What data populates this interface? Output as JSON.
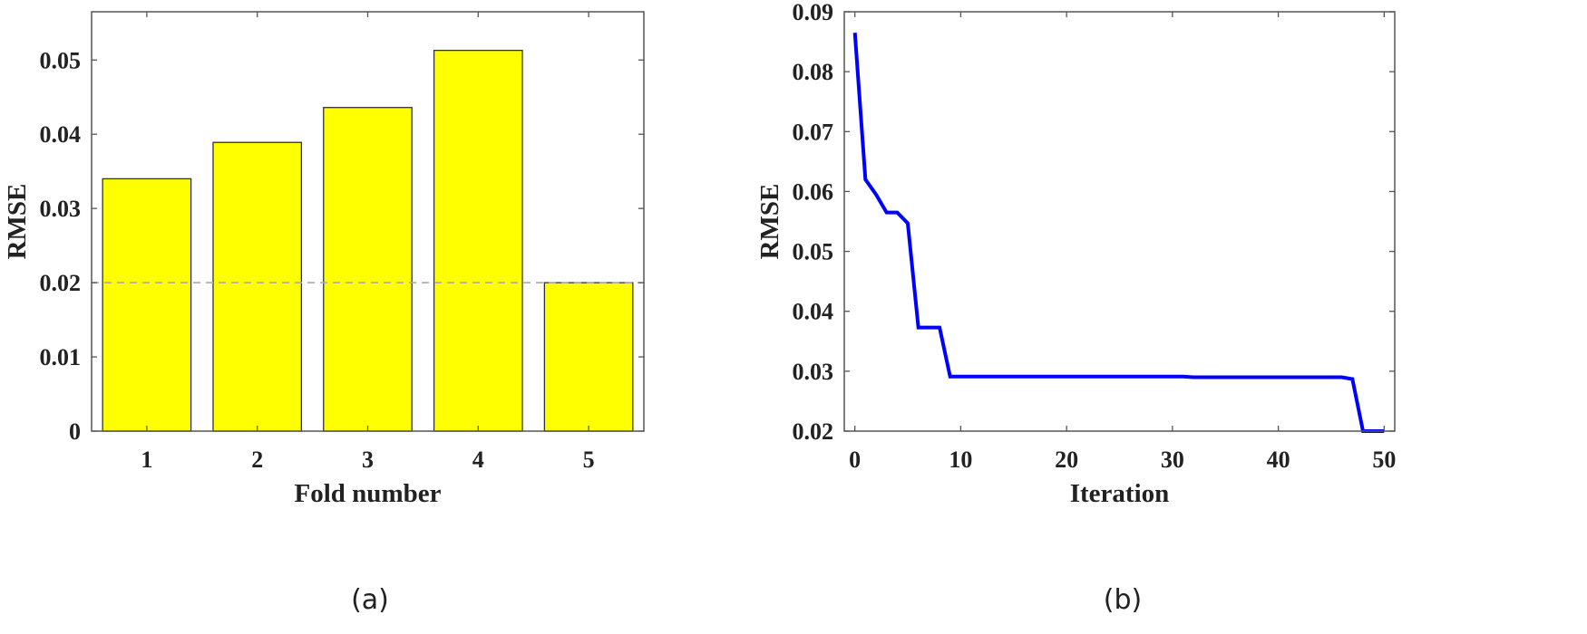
{
  "figure": {
    "panels": [
      "(a)",
      "(b)"
    ]
  },
  "chart_data": [
    {
      "type": "bar",
      "panel": "(a)",
      "title": "",
      "xlabel": "Fold number",
      "ylabel": "RMSE",
      "categories": [
        "1",
        "2",
        "3",
        "4",
        "5"
      ],
      "values": [
        0.034,
        0.0389,
        0.0436,
        0.0513,
        0.02
      ],
      "bar_color": "#FFFF00",
      "bar_edge_color": "#333333",
      "reference_line": {
        "y": 0.02,
        "style": "dashed",
        "color": "#AAAAAA"
      },
      "ylim": [
        0,
        0.0565
      ],
      "yticks": [
        0,
        0.01,
        0.02,
        0.03,
        0.04,
        0.05
      ],
      "ytick_labels": [
        "0",
        "0.01",
        "0.02",
        "0.03",
        "0.04",
        "0.05"
      ],
      "grid": false,
      "legend": null
    },
    {
      "type": "line",
      "panel": "(b)",
      "title": "",
      "xlabel": "Iteration",
      "ylabel": "RMSE",
      "line_color": "#0000FF",
      "x": [
        0,
        1,
        2,
        3,
        4,
        5,
        6,
        8,
        9,
        31,
        32,
        46,
        47,
        48,
        50
      ],
      "y": [
        0.0865,
        0.062,
        0.0595,
        0.0565,
        0.0565,
        0.0547,
        0.0373,
        0.0373,
        0.0291,
        0.0291,
        0.029,
        0.029,
        0.0287,
        0.02,
        0.02
      ],
      "xlim": [
        -1,
        51
      ],
      "ylim": [
        0.02,
        0.09
      ],
      "xticks": [
        0,
        10,
        20,
        30,
        40,
        50
      ],
      "xtick_labels": [
        "0",
        "10",
        "20",
        "30",
        "40",
        "50"
      ],
      "yticks": [
        0.02,
        0.03,
        0.04,
        0.05,
        0.06,
        0.07,
        0.08,
        0.09
      ],
      "ytick_labels": [
        "0.02",
        "0.03",
        "0.04",
        "0.05",
        "0.06",
        "0.07",
        "0.08",
        "0.09"
      ],
      "grid": false,
      "legend": null
    }
  ]
}
